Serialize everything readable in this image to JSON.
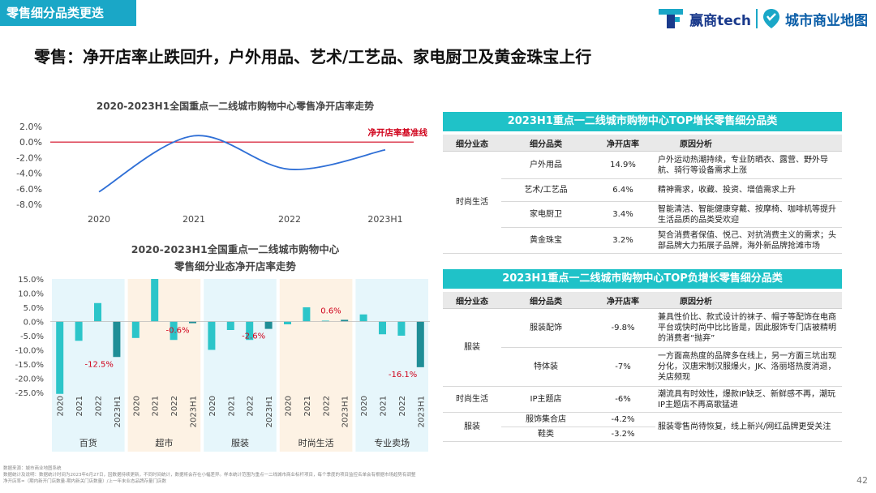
{
  "header": {
    "tag": "零售细分品类更迭",
    "logo1": "赢商tech",
    "logo2": "城市商业地图",
    "headline": "零售：净开店率止跌回升，户外用品、艺术/工艺品、家电厨卫及黄金珠宝上行"
  },
  "chart_data": [
    {
      "type": "line",
      "title": "2020-2023H1全国重点一二线城市购物中心零售净开店率走势",
      "x": [
        "2020",
        "2021",
        "2022",
        "2023H1"
      ],
      "values": [
        -6.4,
        0.8,
        -3.5,
        -1.0
      ],
      "unit": "%",
      "ylim": [
        -8.0,
        2.0
      ],
      "yticks": [
        "2.0%",
        "0.0%",
        "-2.0%",
        "-4.0%",
        "-6.0%",
        "-8.0%"
      ],
      "reference_line": {
        "value": 0,
        "label": "净开店率基准线",
        "color": "#d0021b"
      },
      "line_color": "#2f6fd6"
    },
    {
      "type": "bar",
      "title_line1": "2020-2023H1全国重点一二线城市购物中心",
      "title_line2": "零售细分业态净开店率走势",
      "yticks": [
        "15.0%",
        "10.0%",
        "5.0%",
        "0.0%",
        "-5.0%",
        "-10.0%",
        "-15.0%",
        "-20.0%",
        "-25.0%"
      ],
      "ylim": [
        -25,
        15
      ],
      "periods": [
        "2020",
        "2021",
        "2022",
        "2023H1"
      ],
      "groups": [
        {
          "name": "百货",
          "values": [
            -25.5,
            -6.8,
            6.5,
            -12.5
          ],
          "callout": "-12.5%",
          "bg": "#e6f6fb"
        },
        {
          "name": "超市",
          "values": [
            -5.8,
            15.0,
            -6.5,
            -0.6
          ],
          "callout": "-0.6%",
          "bg": "#fdf2e4"
        },
        {
          "name": "服装",
          "values": [
            -10.0,
            -3.0,
            -6.5,
            -2.6
          ],
          "callout": "-2.6%",
          "bg": "#e6f6fb"
        },
        {
          "name": "时尚生活",
          "values": [
            -1.0,
            5.0,
            0.3,
            0.6
          ],
          "callout": "0.6%",
          "bg": "#fdf2e4"
        },
        {
          "name": "专业卖场",
          "values": [
            2.5,
            -4.5,
            -5.0,
            -16.1
          ],
          "callout": "-16.1%",
          "bg": "#e6f6fb"
        }
      ],
      "bar_color": "#2cc5c9",
      "last_bar_color": "#1f8e96"
    }
  ],
  "table_top": {
    "title": "2023H1重点一二线城市购物中心TOP增长零售细分品类",
    "headers": [
      "细分业态",
      "细分品类",
      "净开店率",
      "原因分析"
    ],
    "category": "时尚生活",
    "rows": [
      {
        "item": "户外用品",
        "rate": "14.9%",
        "reason": "户外运动热潮持续，专业防晒衣、露营、野外导航、骑行等设备需求上涨"
      },
      {
        "item": "艺术/工艺品",
        "rate": "6.4%",
        "reason": "精神需求，收藏、投资、增值需求上升"
      },
      {
        "item": "家电厨卫",
        "rate": "3.4%",
        "reason": "智能清洁、智能健康穿戴、按摩椅、咖啡机等提升生活品质的品类受欢迎"
      },
      {
        "item": "黄金珠宝",
        "rate": "3.2%",
        "reason": "契合消费者保值、悦己、对抗消费主义的需求；头部品牌大力拓展子品牌，海外新品牌抢滩市场"
      }
    ]
  },
  "table_bottom": {
    "title": "2023H1重点一二线城市购物中心TOP负增长零售细分品类",
    "headers": [
      "细分业态",
      "细分品类",
      "净开店率",
      "原因分析"
    ],
    "rows": [
      {
        "cat": "服装",
        "item": "服装配饰",
        "rate": "-9.8%",
        "reason": "兼具性价比、款式设计的袜子、帽子等配饰在电商平台或快时尚中比比皆是，因此服饰专门店被精明的消费者“抛弃”"
      },
      {
        "cat": "",
        "item": "特体装",
        "rate": "-7%",
        "reason": "一方面高热度的品牌多在线上，另一方面三坑出现分化，汉唐宋制汉服爆火，JK、洛丽塔热度消退，关店频现"
      },
      {
        "cat": "时尚生活",
        "item": "IP主题店",
        "rate": "-6%",
        "reason": "潮流具有时效性，爆款IP缺乏、新鲜感不再，潮玩IP主题店不再高歌猛进"
      },
      {
        "cat": "服装",
        "item": "服饰集合店",
        "rate": "-4.2%",
        "reason": "服装零售尚待恢复，线上新兴/网红品牌更受关注"
      },
      {
        "cat": "",
        "item": "鞋类",
        "rate": "-3.2%",
        "reason": ""
      }
    ]
  },
  "footer": {
    "line1": "数据来源：城市商业地图系统",
    "line2": "数据统计及说明：数据统计时间为2023年6月27日，因数据持续更新，不同时间统计，数据将会存在小幅差异。样本统计范围为重点一二线城市商业标杆项目，每个季度的项目监控名单会有根据市场趋势有调整",
    "line3": "净开店率=（期内新开门店数量-期内新关门店数量）/上一年末业态品牌存量门店数",
    "page": "42"
  }
}
